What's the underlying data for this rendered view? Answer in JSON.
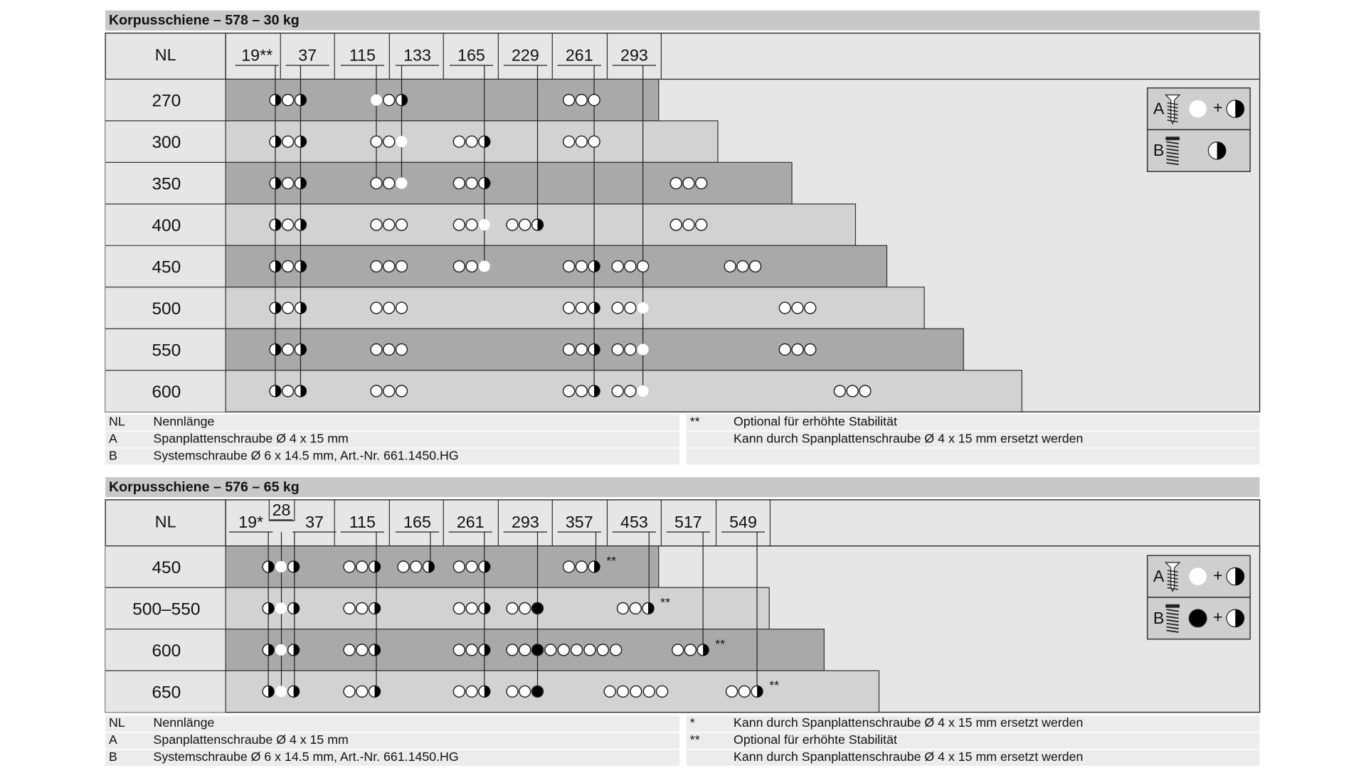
{
  "tables": [
    {
      "title": "Korpusschiene – 578 – 30 kg",
      "header": {
        "nl": "NL",
        "columns": [
          "19**",
          "37",
          "115",
          "133",
          "165",
          "229",
          "261",
          "293"
        ]
      },
      "rows": [
        {
          "label": "270"
        },
        {
          "label": "300"
        },
        {
          "label": "350"
        },
        {
          "label": "400"
        },
        {
          "label": "450"
        },
        {
          "label": "500"
        },
        {
          "label": "550"
        },
        {
          "label": "600"
        }
      ],
      "legend": [
        {
          "key": "A",
          "plus": "+"
        },
        {
          "key": "B"
        }
      ],
      "notes_left": [
        {
          "key": "NL",
          "text": "Nennlänge"
        },
        {
          "key": "A",
          "text": "Spanplattenschraube Ø 4 x 15 mm"
        },
        {
          "key": "B",
          "text": "Systemschraube Ø 6 x 14.5 mm, Art.-Nr. 661.1450.HG"
        }
      ],
      "notes_right": [
        {
          "key": "**",
          "text": "Optional für erhöhte Stabilität"
        },
        {
          "text": "Kann durch Spanplattenschraube Ø 4 x 15 mm ersetzt werden"
        }
      ]
    },
    {
      "title": "Korpusschiene – 576 – 65 kg",
      "header": {
        "nl": "NL",
        "columns": [
          "19*",
          "28",
          "37",
          "115",
          "165",
          "261",
          "293",
          "357",
          "453",
          "517",
          "549"
        ]
      },
      "rows": [
        {
          "label": "450",
          "mark": "**"
        },
        {
          "label": "500–550",
          "mark": "**"
        },
        {
          "label": "600",
          "mark": "**"
        },
        {
          "label": "650",
          "mark": "**"
        }
      ],
      "legend": [
        {
          "key": "A",
          "plus": "+"
        },
        {
          "key": "B",
          "plus": "+"
        }
      ],
      "notes_left": [
        {
          "key": "NL",
          "text": "Nennlänge"
        },
        {
          "key": "A",
          "text": "Spanplattenschraube Ø 4 x 15 mm"
        },
        {
          "key": "B",
          "text": "Systemschraube Ø 6 x 14.5 mm, Art.-Nr. 661.1450.HG"
        }
      ],
      "notes_right": [
        {
          "key": "*",
          "text": "Kann durch Spanplattenschraube Ø 4 x 15 mm ersetzt werden"
        },
        {
          "key": "**",
          "text": "Optional für erhöhte Stabilität"
        },
        {
          "text": "Kann durch Spanplattenschraube Ø 4 x 15 mm ersetzt werden"
        }
      ]
    }
  ]
}
